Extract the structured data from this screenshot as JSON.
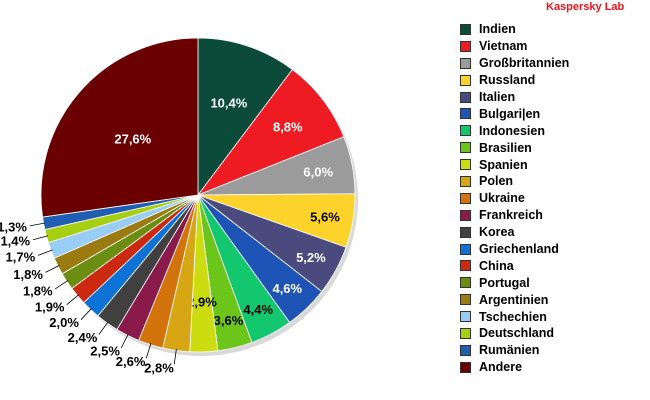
{
  "brand": "Kaspersky Lab",
  "chart_data": {
    "type": "pie",
    "title": "",
    "start_angle_deg": 0,
    "direction": "clockwise",
    "legend_position": "right",
    "slices": [
      {
        "name": "Indien",
        "value": 10.4,
        "label": "10,4%",
        "color": "#0c4b3a"
      },
      {
        "name": "Vietnam",
        "value": 8.8,
        "label": "8,8%",
        "color": "#ee1b22"
      },
      {
        "name": "Großbritannien",
        "value": 6.0,
        "label": "6,0%",
        "color": "#9b9b9b"
      },
      {
        "name": "Russland",
        "value": 5.6,
        "label": "5,6%",
        "color": "#fdd22b"
      },
      {
        "name": "Italien",
        "value": 5.2,
        "label": "5,2%",
        "color": "#4a4a7f"
      },
      {
        "name": "Bulgari|en",
        "value": 4.6,
        "label": "4,6%",
        "color": "#1f54b7"
      },
      {
        "name": "Indonesien",
        "value": 4.4,
        "label": "4,4%",
        "color": "#13c76e"
      },
      {
        "name": "Brasilien",
        "value": 3.6,
        "label": "3,6%",
        "color": "#6bc51a"
      },
      {
        "name": "Spanien",
        "value": 2.9,
        "label": "2,9%",
        "color": "#cbdc11"
      },
      {
        "name": "Polen",
        "value": 2.8,
        "label": "2,8%",
        "color": "#d6a615"
      },
      {
        "name": "Ukraine",
        "value": 2.6,
        "label": "2,6%",
        "color": "#d2730c"
      },
      {
        "name": "Frankreich",
        "value": 2.5,
        "label": "2,5%",
        "color": "#8a1a4a"
      },
      {
        "name": "Korea",
        "value": 2.4,
        "label": "2,4%",
        "color": "#404040"
      },
      {
        "name": "Griechenland",
        "value": 2.0,
        "label": "2,0%",
        "color": "#0d72d6"
      },
      {
        "name": "China",
        "value": 1.9,
        "label": "1,9%",
        "color": "#cc2a10"
      },
      {
        "name": "Portugal",
        "value": 1.8,
        "label": "1,8%",
        "color": "#6b8d12"
      },
      {
        "name": "Argentinien",
        "value": 1.8,
        "label": "1,8%",
        "color": "#9a7b12"
      },
      {
        "name": "Tschechien",
        "value": 1.7,
        "label": "1,7%",
        "color": "#98cdf5"
      },
      {
        "name": "Deutschland",
        "value": 1.4,
        "label": "1,4%",
        "color": "#a6cf12"
      },
      {
        "name": "Rumänien",
        "value": 1.3,
        "label": "1,3%",
        "color": "#1f5eb3"
      },
      {
        "name": "Andere",
        "value": 27.6,
        "label": "27,6%",
        "color": "#6a0000"
      }
    ]
  }
}
